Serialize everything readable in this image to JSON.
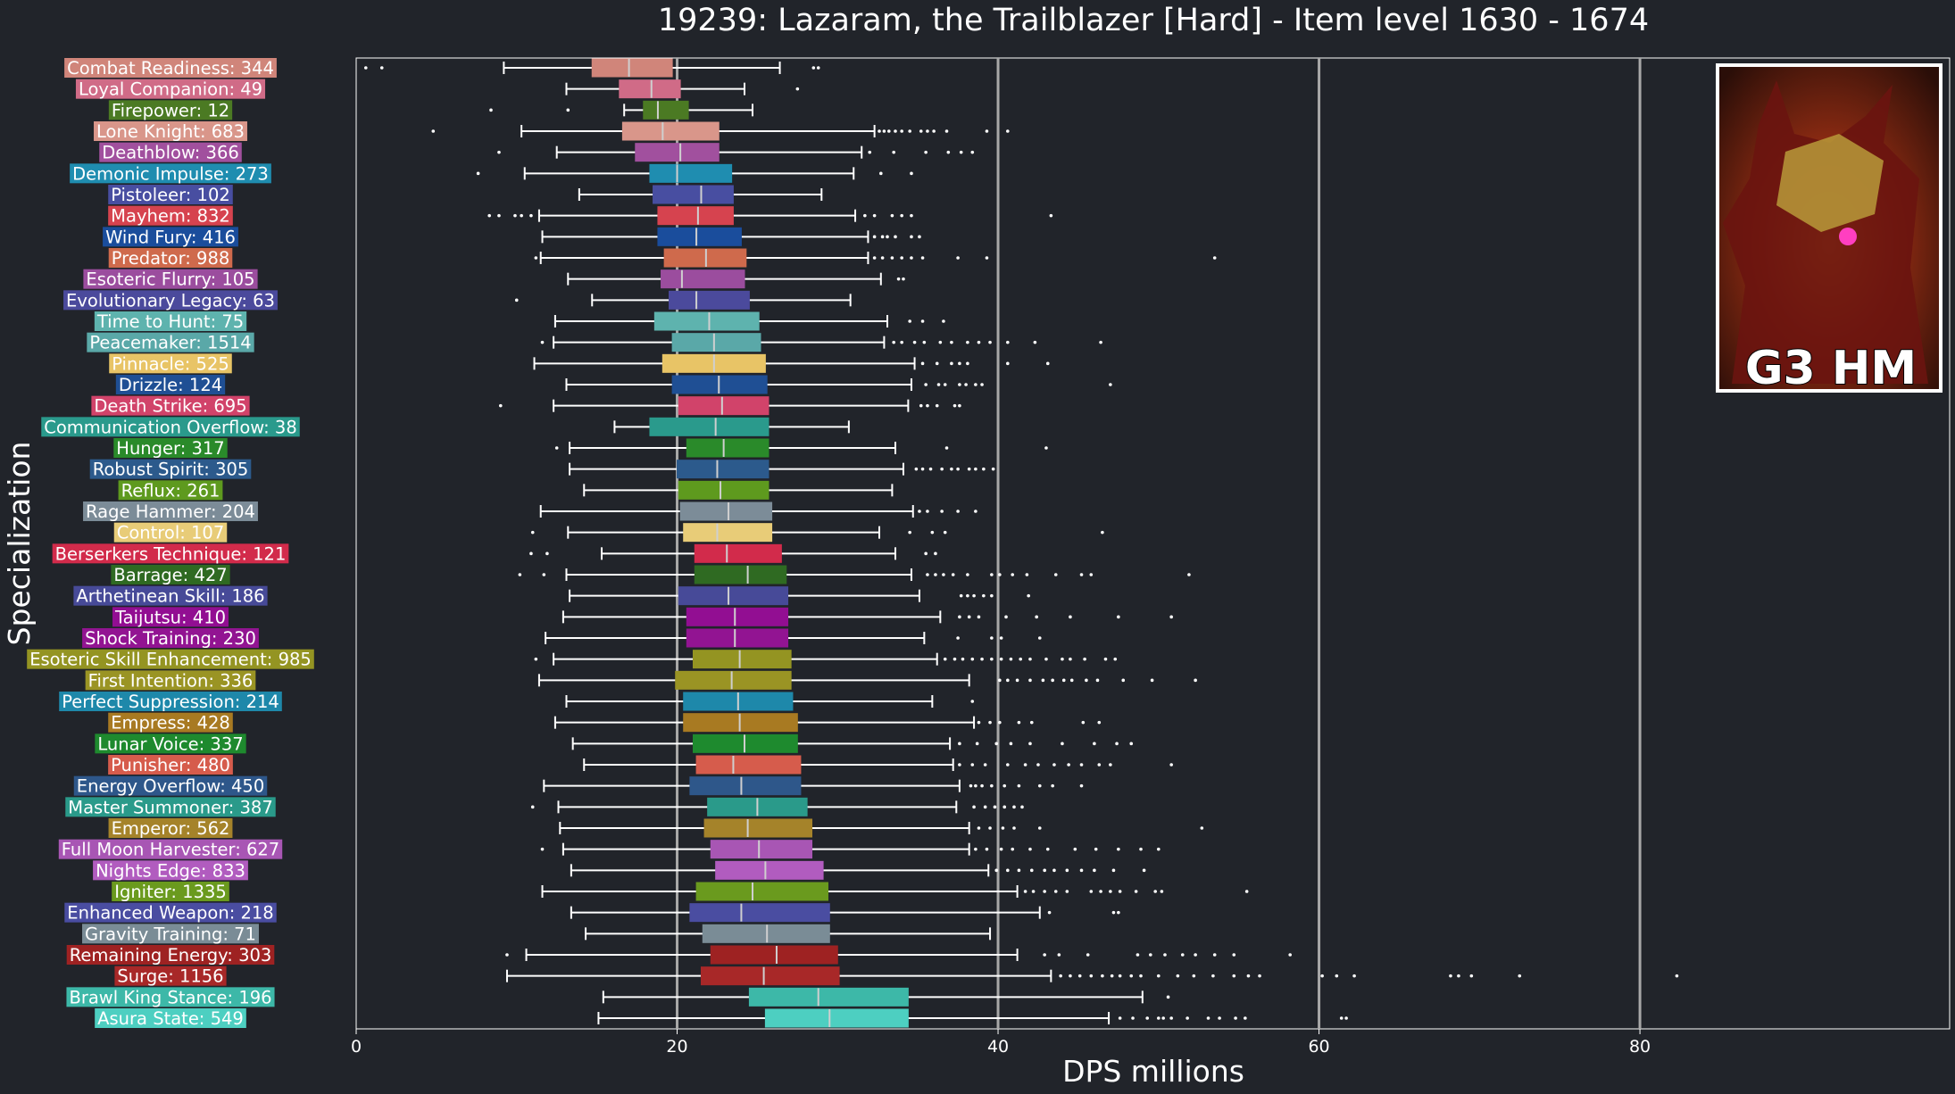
{
  "chart_data": {
    "type": "boxplot",
    "orientation": "horizontal",
    "title": "19239: Lazaram, the Trailblazer [Hard] - Item level 1630 - 1674",
    "xlabel": "DPS millions",
    "ylabel": "Specialization",
    "xlim": [
      0,
      99.3
    ],
    "xticks": [
      0,
      20,
      40,
      60,
      80
    ],
    "vertical_lines": [
      20,
      40,
      60,
      80
    ],
    "thumbnail_text": "G3 HM",
    "series": [
      {
        "name": "Combat Readiness",
        "count": 344,
        "color": "#d0857a",
        "min": 9.2,
        "q1": 14.7,
        "median": 17,
        "q3": 19.7,
        "max": 26.4,
        "outliers": [
          0.6,
          1.6,
          28.5,
          28.8
        ]
      },
      {
        "name": "Loyal Companion",
        "count": 49,
        "color": "#d06b87",
        "min": 13.1,
        "q1": 16.4,
        "median": 18.4,
        "q3": 20.2,
        "max": 24.2,
        "outliers": [
          27.5
        ]
      },
      {
        "name": "Firepower",
        "count": 12,
        "color": "#4b7a23",
        "min": 16.7,
        "q1": 17.9,
        "median": 18.8,
        "q3": 20.7,
        "max": 24.7,
        "outliers": [
          8.4,
          13.2
        ]
      },
      {
        "name": "Lone Knight",
        "count": 683,
        "color": "#d9968a",
        "min": 10.3,
        "q1": 16.6,
        "median": 19.1,
        "q3": 22.6,
        "max": 32.3,
        "outliers": [
          4.8,
          32.6,
          32.9,
          33.2,
          33.6,
          34,
          34.5,
          35.2,
          35.6,
          36,
          36.8,
          39.3,
          40.6
        ]
      },
      {
        "name": "Deathblow",
        "count": 366,
        "color": "#a1509e",
        "min": 12.5,
        "q1": 17.4,
        "median": 20.2,
        "q3": 22.6,
        "max": 31.5,
        "outliers": [
          8.9,
          32,
          33.5,
          35.5,
          36.9,
          37.7,
          38.4
        ]
      },
      {
        "name": "Demonic Impulse",
        "count": 273,
        "color": "#1f8db0",
        "min": 10.5,
        "q1": 18.3,
        "median": 20,
        "q3": 23.4,
        "max": 31,
        "outliers": [
          7.6,
          32.7,
          34.6
        ]
      },
      {
        "name": "Pistoleer",
        "count": 102,
        "color": "#484ea1",
        "min": 13.9,
        "q1": 18.5,
        "median": 21.5,
        "q3": 23.5,
        "max": 29,
        "outliers": []
      },
      {
        "name": "Mayhem",
        "count": 832,
        "color": "#d6434f",
        "min": 11.4,
        "q1": 18.8,
        "median": 21.3,
        "q3": 23.5,
        "max": 31.1,
        "outliers": [
          8.3,
          8.9,
          9.9,
          10.3,
          10.9,
          31.7,
          32.3,
          33.4,
          34,
          34.6,
          43.3
        ]
      },
      {
        "name": "Wind Fury",
        "count": 416,
        "color": "#1a4d9c",
        "min": 11.6,
        "q1": 18.8,
        "median": 21.2,
        "q3": 24,
        "max": 31.9,
        "outliers": [
          32.3,
          32.8,
          33.1,
          33.6,
          34.6,
          35.1
        ]
      },
      {
        "name": "Predator",
        "count": 988,
        "color": "#cf6a4c",
        "min": 11.5,
        "q1": 19.2,
        "median": 21.8,
        "q3": 24.3,
        "max": 31.9,
        "outliers": [
          11.2,
          32.3,
          32.8,
          33.4,
          34,
          34.6,
          35.3,
          37.5,
          39.3,
          53.5
        ]
      },
      {
        "name": "Esoteric Flurry",
        "count": 105,
        "color": "#9b4d9e",
        "min": 13.2,
        "q1": 19,
        "median": 20.3,
        "q3": 24.2,
        "max": 32.7,
        "outliers": [
          33.8,
          34.1
        ]
      },
      {
        "name": "Evolutionary Legacy",
        "count": 63,
        "color": "#4b4a9c",
        "min": 14.7,
        "q1": 19.5,
        "median": 21.2,
        "q3": 24.5,
        "max": 30.8,
        "outliers": [
          10
        ]
      },
      {
        "name": "Time to Hunt",
        "count": 75,
        "color": "#5eb3ae",
        "min": 12.4,
        "q1": 18.6,
        "median": 22,
        "q3": 25.1,
        "max": 33.1,
        "outliers": [
          34.5,
          35.3,
          36.6
        ]
      },
      {
        "name": "Peacemaker",
        "count": 1514,
        "color": "#5aa8a8",
        "min": 12.3,
        "q1": 19.7,
        "median": 22.3,
        "q3": 25.2,
        "max": 32.9,
        "outliers": [
          11.6,
          33.5,
          34,
          34.8,
          35.4,
          36.4,
          37.1,
          38.1,
          38.8,
          39.5,
          40.6,
          42.3,
          46.4
        ]
      },
      {
        "name": "Pinnacle",
        "count": 525,
        "color": "#e8c466",
        "min": 11.1,
        "q1": 19.1,
        "median": 22.3,
        "q3": 25.5,
        "max": 34.8,
        "outliers": [
          35.3,
          36.2,
          37.1,
          37.6,
          38.1,
          40.6,
          43.1
        ]
      },
      {
        "name": "Drizzle",
        "count": 124,
        "color": "#1f4f94",
        "min": 13.1,
        "q1": 19.7,
        "median": 22.6,
        "q3": 25.6,
        "max": 34.6,
        "outliers": [
          35.5,
          36.3,
          36.7,
          37.6,
          38,
          38.6,
          39,
          47
        ]
      },
      {
        "name": "Death Strike",
        "count": 695,
        "color": "#d1436a",
        "min": 12.3,
        "q1": 20.1,
        "median": 22.8,
        "q3": 25.7,
        "max": 34.4,
        "outliers": [
          9,
          35.2,
          35.6,
          36.2,
          37.3,
          37.6
        ]
      },
      {
        "name": "Communication Overflow",
        "count": 38,
        "color": "#2a9a8c",
        "min": 16.1,
        "q1": 18.3,
        "median": 22.4,
        "q3": 25.7,
        "max": 30.7,
        "outliers": []
      },
      {
        "name": "Hunger",
        "count": 317,
        "color": "#2a8a2a",
        "min": 13.3,
        "q1": 20.6,
        "median": 22.9,
        "q3": 25.7,
        "max": 33.6,
        "outliers": [
          12.5,
          36.8,
          43
        ]
      },
      {
        "name": "Robust Spirit",
        "count": 305,
        "color": "#2c5a8c",
        "min": 13.3,
        "q1": 20,
        "median": 22.5,
        "q3": 25.7,
        "max": 34.1,
        "outliers": [
          34.9,
          35.3,
          35.8,
          36.5,
          37.1,
          37.5,
          38.2,
          38.6,
          39.1,
          39.7
        ]
      },
      {
        "name": "Reflux",
        "count": 261,
        "color": "#5e9a1e",
        "min": 14.2,
        "q1": 20.1,
        "median": 22.7,
        "q3": 25.7,
        "max": 33.4,
        "outliers": []
      },
      {
        "name": "Rage Hammer",
        "count": 204,
        "color": "#7c8c98",
        "min": 11.5,
        "q1": 20.2,
        "median": 23.2,
        "q3": 25.9,
        "max": 34.7,
        "outliers": [
          35.1,
          35.6,
          36.5,
          37.5,
          38.6
        ]
      },
      {
        "name": "Control",
        "count": 107,
        "color": "#e8cc78",
        "min": 13.2,
        "q1": 20.4,
        "median": 22.5,
        "q3": 25.9,
        "max": 32.6,
        "outliers": [
          11,
          34.5,
          35.9,
          36.7,
          46.5
        ]
      },
      {
        "name": "Berserkers Technique",
        "count": 121,
        "color": "#d22b4b",
        "min": 15.3,
        "q1": 21.1,
        "median": 23.1,
        "q3": 26.5,
        "max": 33.6,
        "outliers": [
          10.9,
          11.9,
          35.5,
          36.1
        ]
      },
      {
        "name": "Barrage",
        "count": 427,
        "color": "#2f6a22",
        "min": 13.1,
        "q1": 21.1,
        "median": 24.4,
        "q3": 26.8,
        "max": 34.6,
        "outliers": [
          10.2,
          11.7,
          35.6,
          36.1,
          36.6,
          37.2,
          38.1,
          39.6,
          40.1,
          40.9,
          41.8,
          43.6,
          45.2,
          45.8,
          51.9
        ]
      },
      {
        "name": "Arthetinean Skill",
        "count": 186,
        "color": "#474a98",
        "min": 13.3,
        "q1": 20.1,
        "median": 23.2,
        "q3": 26.9,
        "max": 35.1,
        "outliers": [
          37.7,
          38.1,
          38.5,
          39.1,
          39.6,
          41.9
        ]
      },
      {
        "name": "Taijutsu",
        "count": 410,
        "color": "#920e92",
        "min": 12.9,
        "q1": 20.6,
        "median": 23.6,
        "q3": 26.9,
        "max": 36.4,
        "outliers": [
          37.6,
          38.2,
          38.8,
          40.5,
          42.4,
          44.5,
          47.5,
          50.8
        ]
      },
      {
        "name": "Shock Training",
        "count": 230,
        "color": "#921492",
        "min": 11.8,
        "q1": 20.6,
        "median": 23.6,
        "q3": 26.9,
        "max": 35.4,
        "outliers": [
          37.5,
          39.6,
          40.2,
          42.6
        ]
      },
      {
        "name": "Esoteric Skill Enhancement",
        "count": 985,
        "color": "#949422",
        "min": 12.3,
        "q1": 21,
        "median": 23.9,
        "q3": 27.1,
        "max": 36.2,
        "outliers": [
          11.2,
          36.7,
          37.3,
          37.8,
          38.4,
          39,
          39.6,
          40.2,
          40.8,
          41.4,
          42,
          43,
          44,
          44.5,
          45.4,
          46.7,
          47.3
        ]
      },
      {
        "name": "First Intention",
        "count": 336,
        "color": "#9a9424",
        "min": 11.4,
        "q1": 19.9,
        "median": 23.4,
        "q3": 27.1,
        "max": 38.2,
        "outliers": [
          40.1,
          40.6,
          41.2,
          42,
          42.8,
          43.4,
          44.1,
          44.6,
          45.5,
          46.2,
          47.8,
          49.6,
          52.3
        ]
      },
      {
        "name": "Perfect Suppression",
        "count": 214,
        "color": "#1e88aa",
        "min": 13.1,
        "q1": 20.4,
        "median": 23.8,
        "q3": 27.2,
        "max": 35.9,
        "outliers": [
          38.4
        ]
      },
      {
        "name": "Empress",
        "count": 428,
        "color": "#a87a22",
        "min": 12.4,
        "q1": 20.4,
        "median": 23.9,
        "q3": 27.5,
        "max": 38.5,
        "outliers": [
          38.8,
          39.5,
          40.1,
          41.3,
          42.1,
          45.3,
          46.3
        ]
      },
      {
        "name": "Lunar Voice",
        "count": 337,
        "color": "#1e8a2e",
        "min": 13.5,
        "q1": 21,
        "median": 24.2,
        "q3": 27.5,
        "max": 37,
        "outliers": [
          37.6,
          38.7,
          39.9,
          40.8,
          42,
          44,
          46,
          47.4,
          48.3
        ]
      },
      {
        "name": "Punisher",
        "count": 480,
        "color": "#d65c4c",
        "min": 14.2,
        "q1": 21.2,
        "median": 23.5,
        "q3": 27.7,
        "max": 37.2,
        "outliers": [
          37.6,
          38.4,
          39.2,
          40.6,
          41.7,
          42.5,
          43.5,
          44.4,
          45.2,
          46.3,
          47,
          50.8
        ]
      },
      {
        "name": "Energy Overflow",
        "count": 450,
        "color": "#2e578a",
        "min": 11.7,
        "q1": 20.8,
        "median": 24,
        "q3": 27.7,
        "max": 37.6,
        "outliers": [
          38.3,
          38.6,
          39,
          39.6,
          40.4,
          41.3,
          42.6,
          43.4,
          45.2
        ]
      },
      {
        "name": "Master Summoner",
        "count": 387,
        "color": "#2a9a8a",
        "min": 12.6,
        "q1": 21.9,
        "median": 25,
        "q3": 28.1,
        "max": 37.4,
        "outliers": [
          11,
          38.5,
          39.2,
          39.8,
          40.4,
          41,
          41.5
        ]
      },
      {
        "name": "Emperor",
        "count": 562,
        "color": "#a5832a",
        "min": 12.7,
        "q1": 21.7,
        "median": 24.4,
        "q3": 28.4,
        "max": 38.2,
        "outliers": [
          38.8,
          39.5,
          40.3,
          41,
          42.6,
          52.7
        ]
      },
      {
        "name": "Full Moon Harvester",
        "count": 627,
        "color": "#a856b4",
        "min": 12.9,
        "q1": 22.1,
        "median": 25.1,
        "q3": 28.4,
        "max": 38.2,
        "outliers": [
          11.6,
          38.6,
          39.3,
          40.2,
          40.9,
          42,
          43.1,
          44.8,
          46.1,
          47.5,
          48.9,
          50
        ]
      },
      {
        "name": "Nights Edge",
        "count": 833,
        "color": "#b15cbf",
        "min": 13.4,
        "q1": 22.4,
        "median": 25.5,
        "q3": 29.1,
        "max": 39.4,
        "outliers": [
          39.9,
          40.6,
          41.3,
          42.1,
          42.9,
          43.5,
          44.3,
          45.2,
          46,
          47.2,
          49.1
        ]
      },
      {
        "name": "Igniter",
        "count": 1335,
        "color": "#6a9a1e",
        "min": 11.6,
        "q1": 21.2,
        "median": 24.7,
        "q3": 29.4,
        "max": 41.2,
        "outliers": [
          41.7,
          42.2,
          42.9,
          43.6,
          44.3,
          45.8,
          46.4,
          47,
          47.6,
          48.6,
          49.8,
          50.2,
          55.5
        ]
      },
      {
        "name": "Enhanced Weapon",
        "count": 218,
        "color": "#4a4da1",
        "min": 13.4,
        "q1": 20.8,
        "median": 24,
        "q3": 29.5,
        "max": 42.6,
        "outliers": [
          43.2,
          47.2,
          47.5
        ]
      },
      {
        "name": "Gravity Training",
        "count": 71,
        "color": "#7a8c96",
        "min": 14.3,
        "q1": 21.6,
        "median": 25.6,
        "q3": 29.5,
        "max": 39.5,
        "outliers": []
      },
      {
        "name": "Remaining Energy",
        "count": 303,
        "color": "#9e2222",
        "min": 10.6,
        "q1": 22.1,
        "median": 26.2,
        "q3": 30,
        "max": 41.2,
        "outliers": [
          9.4,
          42.9,
          43.8,
          45.6,
          48.7,
          49.5,
          50.4,
          51.5,
          52.3,
          53.5,
          54.7,
          58.2
        ]
      },
      {
        "name": "Surge",
        "count": 1156,
        "color": "#a82828",
        "min": 9.4,
        "q1": 21.5,
        "median": 25.4,
        "q3": 30.1,
        "max": 43.3,
        "outliers": [
          43.9,
          44.5,
          45.1,
          45.8,
          46.5,
          47.1,
          47.6,
          48.3,
          48.9,
          50,
          51.2,
          52.2,
          53.4,
          54.7,
          55.6,
          56.3,
          60.2,
          61.1,
          62.2,
          68.2,
          68.7,
          69.5,
          72.5,
          82.3
        ]
      },
      {
        "name": "Brawl King Stance",
        "count": 196,
        "color": "#3db8a8",
        "min": 15.4,
        "q1": 24.5,
        "median": 28.8,
        "q3": 34.4,
        "max": 49,
        "outliers": [
          50.6
        ]
      },
      {
        "name": "Asura State",
        "count": 549,
        "color": "#4dcfc1",
        "min": 15.1,
        "q1": 25.5,
        "median": 29.5,
        "q3": 34.4,
        "max": 46.9,
        "outliers": [
          47.6,
          48.4,
          49.3,
          50,
          50.3,
          50.8,
          51.8,
          53.1,
          53.8,
          54.8,
          55.4,
          61.4,
          61.7
        ]
      }
    ]
  }
}
